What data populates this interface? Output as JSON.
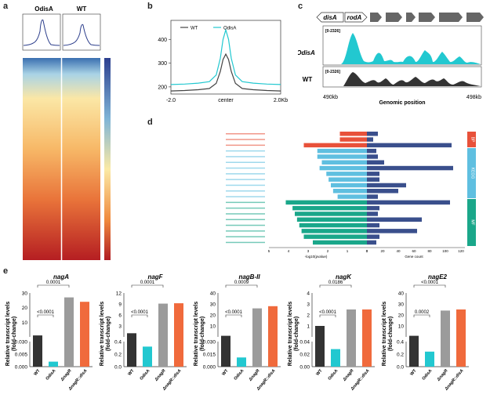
{
  "panels": {
    "a": "a",
    "b": "b",
    "c": "c",
    "d": "d",
    "e": "e"
  },
  "panel_a": {
    "col_labels": [
      "OdisA",
      "WT"
    ]
  },
  "chart_data": [
    {
      "id": "b",
      "type": "line",
      "x_ticks": [
        "-2.0",
        "center",
        "2.0Kb"
      ],
      "y_ticks": [
        200,
        300,
        400
      ],
      "ylim": [
        170,
        480
      ],
      "legend": [
        {
          "name": "WT",
          "color": "#444444"
        },
        {
          "name": "OdisA",
          "color": "#22c8d0"
        }
      ],
      "series": [
        {
          "name": "WT",
          "color": "#444444",
          "x": [
            -2,
            -1.5,
            -1,
            -0.6,
            -0.35,
            -0.2,
            -0.1,
            0,
            0.1,
            0.2,
            0.35,
            0.6,
            1,
            1.5,
            2
          ],
          "y": [
            183,
            185,
            188,
            193,
            215,
            265,
            315,
            338,
            315,
            265,
            215,
            193,
            188,
            185,
            183
          ]
        },
        {
          "name": "OdisA",
          "color": "#22c8d0",
          "x": [
            -2,
            -1.5,
            -1,
            -0.6,
            -0.35,
            -0.2,
            -0.1,
            0,
            0.1,
            0.2,
            0.35,
            0.6,
            1,
            1.5,
            2
          ],
          "y": [
            210,
            212,
            216,
            222,
            250,
            320,
            400,
            440,
            400,
            320,
            250,
            222,
            216,
            212,
            210
          ]
        }
      ]
    },
    {
      "id": "e",
      "type": "bar",
      "categories": [
        "WT",
        "OdisA",
        "ΔnagR",
        "ΔnagR::disA"
      ],
      "bar_colors": [
        "#333333",
        "#22c8d0",
        "#9b9b9b",
        "#f06a3c"
      ],
      "ylabel": "Relative transcript levels\n(fold-change)",
      "subcharts": [
        {
          "title": "nagA",
          "values": [
            1,
            0.006,
            27,
            24
          ],
          "top_ticks": [
            10,
            20,
            30
          ],
          "bottom_ticks": [
            "0.000",
            "0.005",
            "0.030"
          ],
          "sig": [
            {
              "label": "<0.0001",
              "from": 0,
              "to": 1
            },
            {
              "label": "0.0001",
              "from": 0,
              "to": 2
            }
          ]
        },
        {
          "title": "nagF",
          "values": [
            1,
            0.32,
            9.1,
            9.2
          ],
          "top_ticks": [
            3,
            6,
            9,
            12
          ],
          "bottom_ticks": [
            "0.0",
            "0.2",
            "0.4"
          ],
          "sig": [
            {
              "label": "<0.0001",
              "from": 0,
              "to": 1
            },
            {
              "label": "0.0001",
              "from": 0,
              "to": 2
            }
          ]
        },
        {
          "title": "nagB-II",
          "values": [
            1,
            0.011,
            26,
            28
          ],
          "top_ticks": [
            10,
            20,
            30,
            40
          ],
          "bottom_ticks": [
            "0.000",
            "0.015",
            "0.030"
          ],
          "sig": [
            {
              "label": "<0.0001",
              "from": 0,
              "to": 1
            },
            {
              "label": "0.0009",
              "from": 0,
              "to": 2
            }
          ]
        },
        {
          "title": "nagK",
          "values": [
            1,
            0.028,
            2.5,
            2.5
          ],
          "top_ticks": [
            1,
            2,
            3,
            4
          ],
          "bottom_ticks": [
            "0.00",
            "0.02",
            "0.04"
          ],
          "sig": [
            {
              "label": "<0.0001",
              "from": 0,
              "to": 1
            },
            {
              "label": "0.0186",
              "from": 0,
              "to": 2
            }
          ]
        },
        {
          "title": "nagE2",
          "values": [
            1,
            0.24,
            24,
            25
          ],
          "top_ticks": [
            10,
            20,
            30,
            40
          ],
          "bottom_ticks": [
            "0.0",
            "0.2",
            "0.4"
          ],
          "sig": [
            {
              "label": "0.0002",
              "from": 0,
              "to": 1
            },
            {
              "label": "<0.0001",
              "from": 0,
              "to": 2
            }
          ]
        }
      ]
    }
  ],
  "panel_c": {
    "genes": [
      "disA",
      "rodA"
    ],
    "tracks": [
      {
        "label": "OdisA",
        "range": "[0-2326]",
        "color": "#22c8d0"
      },
      {
        "label": "WT",
        "range": "[0-2326]",
        "color": "#333333"
      }
    ],
    "x_start": "490kb",
    "x_end": "498kb",
    "x_label": "Genomic position"
  },
  "panel_d": {
    "categories": [
      "BP",
      "KEGG",
      "MF"
    ],
    "category_colors": [
      "#e8513a",
      "#5fbfe0",
      "#1aa78a"
    ],
    "x_left_label": "-log10(pvalue)",
    "x_right_label": "Gene count",
    "left_ticks": [
      "5",
      "4",
      "3",
      "2",
      "1",
      "0"
    ],
    "right_ticks": [
      "0",
      "20",
      "40",
      "60",
      "80",
      "100",
      "120"
    ]
  }
}
